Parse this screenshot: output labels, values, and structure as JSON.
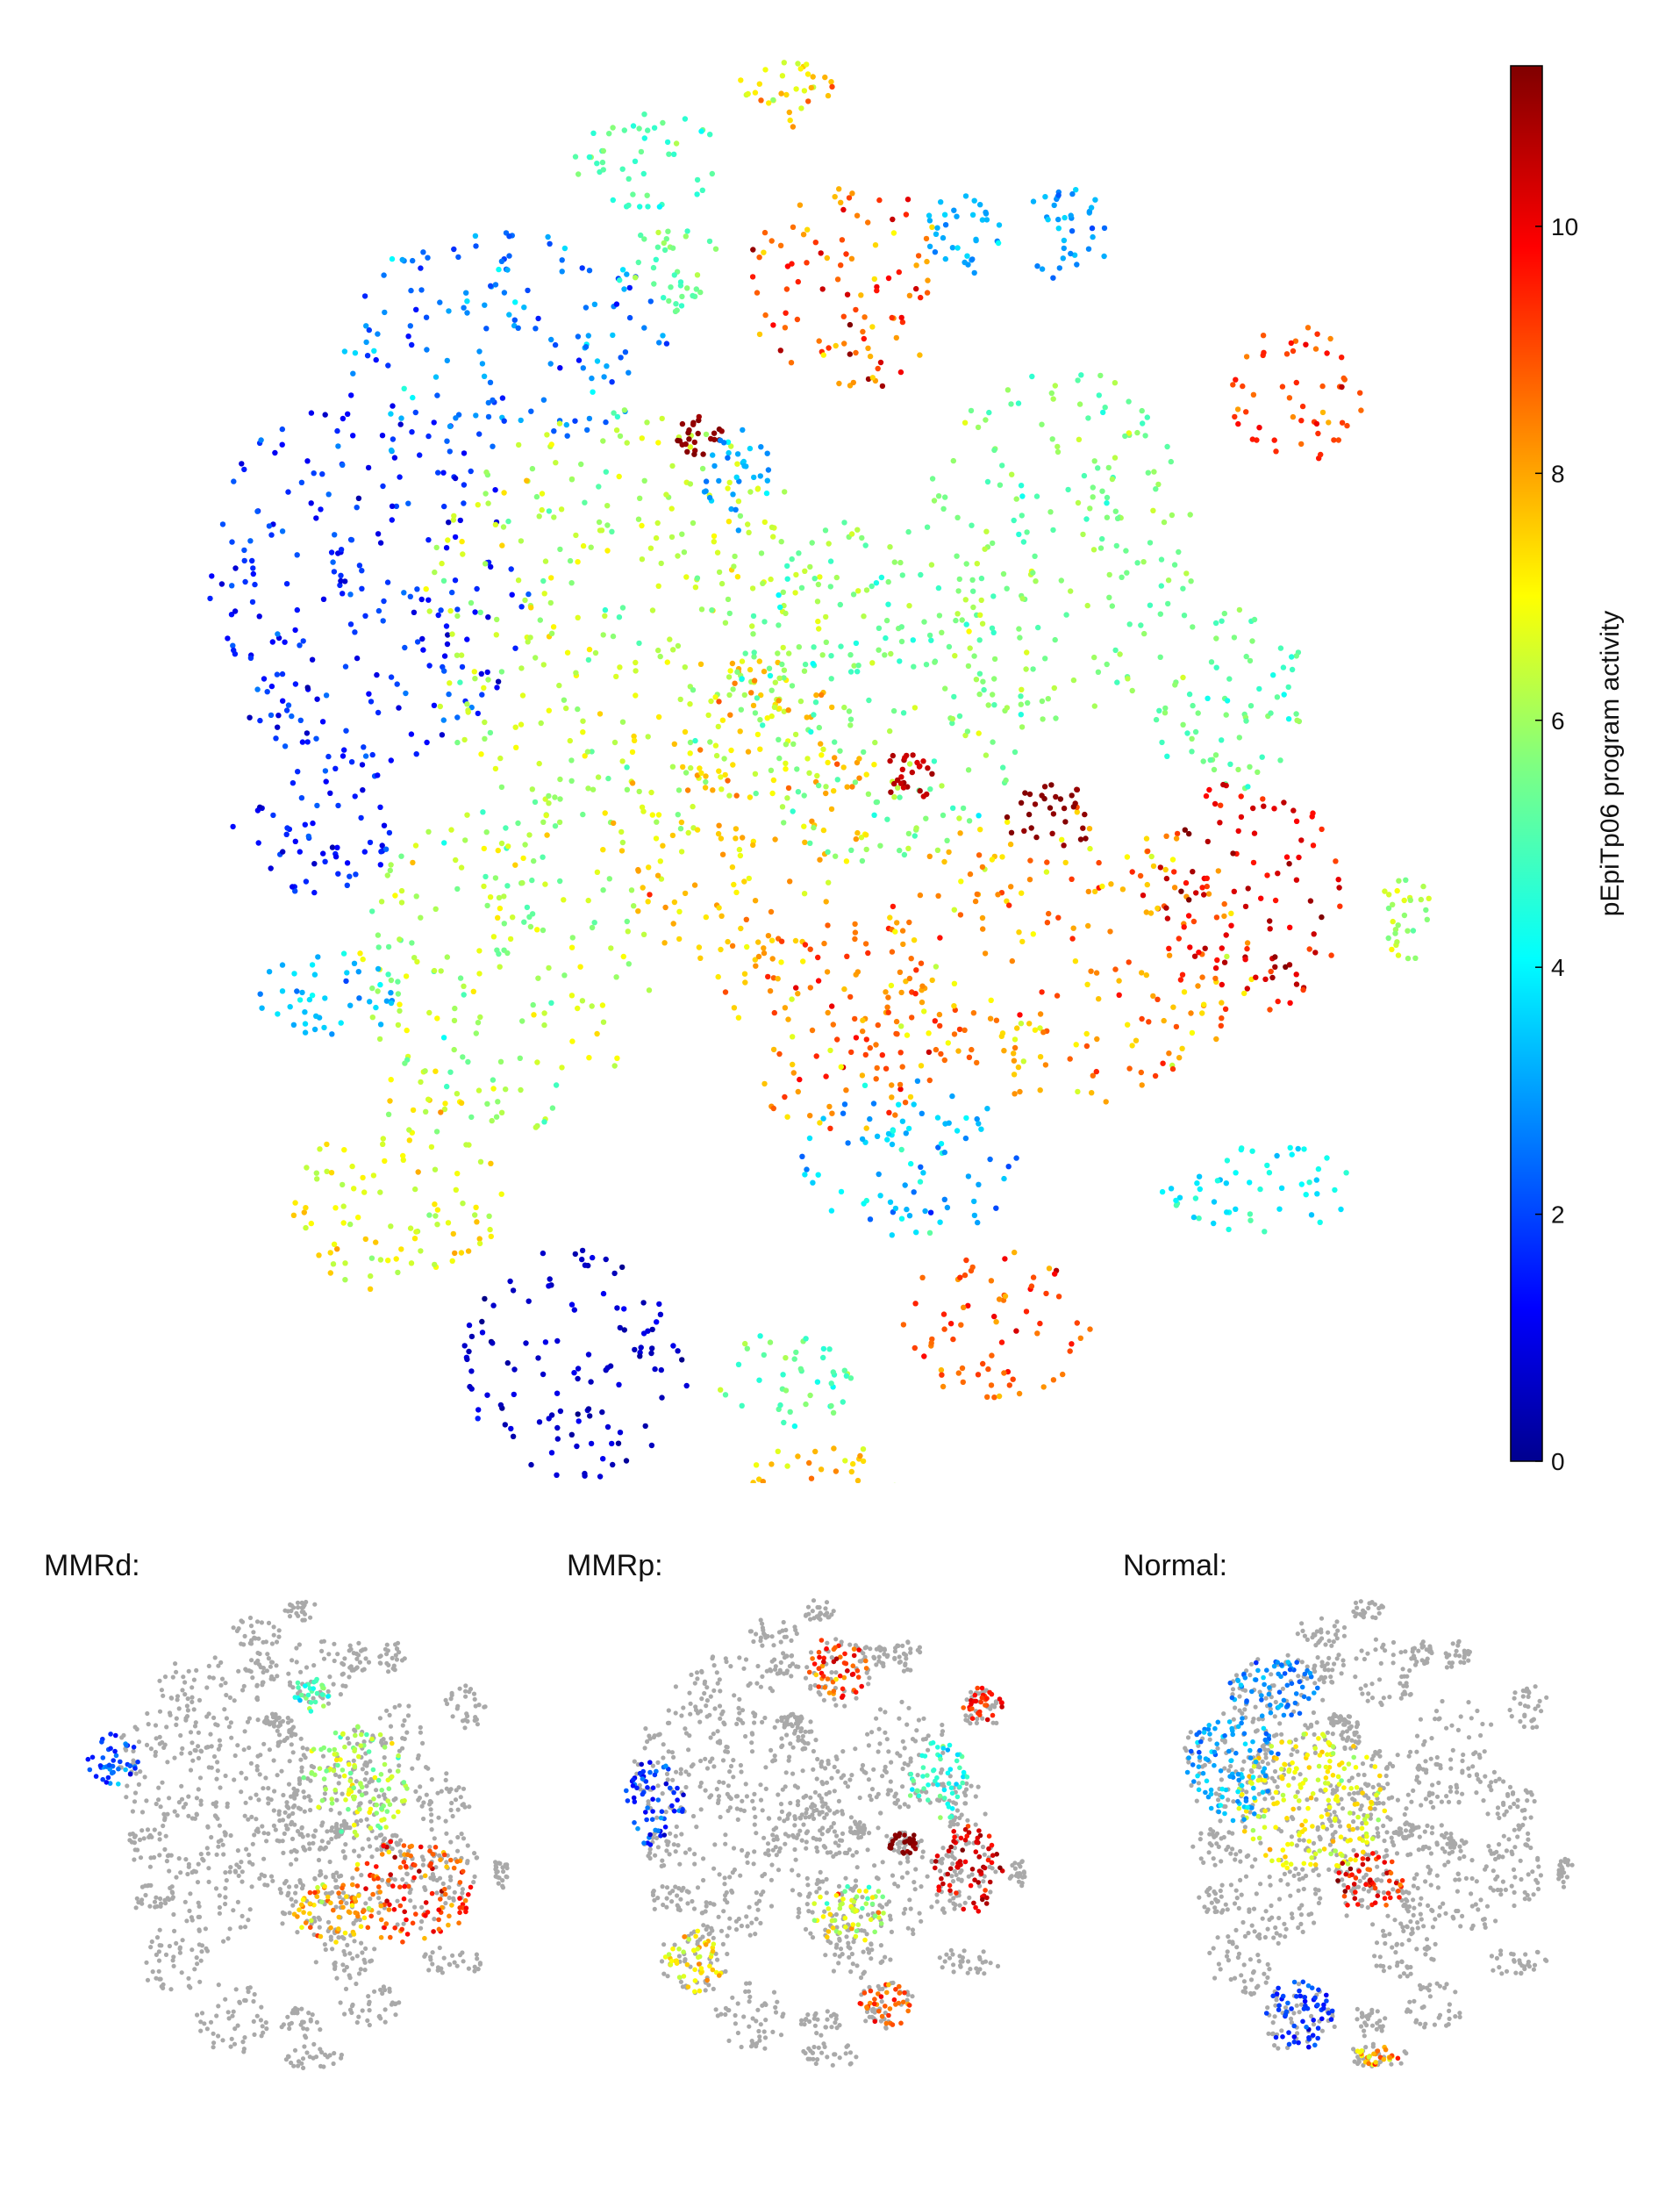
{
  "chart_data": [
    {
      "type": "scatter",
      "title": "",
      "colorbar": {
        "label": "pEpiTp06 program activity",
        "range": [
          0,
          11.3
        ],
        "ticks": [
          0,
          2,
          4,
          6,
          8,
          10
        ],
        "tick_labels": [
          "0",
          "2",
          "4",
          "6",
          "8",
          "10"
        ],
        "colormap": "jet"
      },
      "axes_visible": false,
      "grid": false,
      "clusters": [
        {
          "cx": -0.56,
          "cy": 0.26,
          "rx": 0.24,
          "ry": 0.28,
          "value": 1.8,
          "spread": 1.2
        },
        {
          "cx": -0.36,
          "cy": 0.62,
          "rx": 0.24,
          "ry": 0.16,
          "value": 2.8,
          "spread": 1.4
        },
        {
          "cx": -0.18,
          "cy": 0.2,
          "rx": 0.3,
          "ry": 0.32,
          "value": 6.3,
          "spread": 1.2
        },
        {
          "cx": 0.0,
          "cy": -0.08,
          "rx": 0.2,
          "ry": 0.24,
          "value": 7.6,
          "spread": 1.3
        },
        {
          "cx": 0.13,
          "cy": -0.38,
          "rx": 0.18,
          "ry": 0.16,
          "value": 8.6,
          "spread": 1.6
        },
        {
          "cx": -0.36,
          "cy": -0.3,
          "rx": 0.22,
          "ry": 0.24,
          "value": 6.2,
          "spread": 1.4
        },
        {
          "cx": -0.64,
          "cy": -0.1,
          "rx": 0.12,
          "ry": 0.09,
          "value": 1.6,
          "spread": 1.0
        },
        {
          "cx": -0.62,
          "cy": -0.34,
          "rx": 0.1,
          "ry": 0.07,
          "value": 3.6,
          "spread": 1.0
        },
        {
          "cx": -0.52,
          "cy": -0.62,
          "rx": 0.16,
          "ry": 0.16,
          "value": 6.8,
          "spread": 1.4
        },
        {
          "cx": -0.26,
          "cy": -0.88,
          "rx": 0.17,
          "ry": 0.17,
          "value": 0.8,
          "spread": 0.7
        },
        {
          "cx": 0.14,
          "cy": 0.7,
          "rx": 0.15,
          "ry": 0.16,
          "value": 9.0,
          "spread": 2.0
        },
        {
          "cx": 0.06,
          "cy": 0.98,
          "rx": 0.08,
          "ry": 0.05,
          "value": 7.4,
          "spread": 1.4
        },
        {
          "cx": -0.15,
          "cy": 0.88,
          "rx": 0.12,
          "ry": 0.07,
          "value": 5.0,
          "spread": 0.9
        },
        {
          "cx": -0.12,
          "cy": 0.72,
          "rx": 0.08,
          "ry": 0.07,
          "value": 5.3,
          "spread": 0.9
        },
        {
          "cx": 0.31,
          "cy": 0.77,
          "rx": 0.06,
          "ry": 0.07,
          "value": 3.4,
          "spread": 0.8
        },
        {
          "cx": 0.19,
          "cy": 0.1,
          "rx": 0.22,
          "ry": 0.26,
          "value": 5.6,
          "spread": 1.1
        },
        {
          "cx": 0.45,
          "cy": 0.32,
          "rx": 0.2,
          "ry": 0.26,
          "value": 5.7,
          "spread": 1.0
        },
        {
          "cx": 0.7,
          "cy": 0.1,
          "rx": 0.12,
          "ry": 0.14,
          "value": 5.4,
          "spread": 1.0
        },
        {
          "cx": 0.8,
          "cy": 0.54,
          "rx": 0.1,
          "ry": 0.1,
          "value": 9.1,
          "spread": 1.2
        },
        {
          "cx": 0.46,
          "cy": -0.28,
          "rx": 0.28,
          "ry": 0.22,
          "value": 8.2,
          "spread": 1.8
        },
        {
          "cx": 0.73,
          "cy": -0.2,
          "rx": 0.14,
          "ry": 0.18,
          "value": 10.3,
          "spread": 1.3
        },
        {
          "cx": 0.23,
          "cy": -0.58,
          "rx": 0.16,
          "ry": 0.12,
          "value": 3.6,
          "spread": 1.4
        },
        {
          "cx": 0.74,
          "cy": -0.62,
          "rx": 0.14,
          "ry": 0.07,
          "value": 4.2,
          "spread": 1.0
        },
        {
          "cx": 0.36,
          "cy": -0.82,
          "rx": 0.14,
          "ry": 0.11,
          "value": 9.0,
          "spread": 1.3
        },
        {
          "cx": 0.05,
          "cy": -0.9,
          "rx": 0.1,
          "ry": 0.07,
          "value": 5.3,
          "spread": 1.0
        },
        {
          "cx": 0.1,
          "cy": -1.05,
          "rx": 0.14,
          "ry": 0.06,
          "value": 7.5,
          "spread": 2.0
        },
        {
          "cx": 0.96,
          "cy": -0.22,
          "rx": 0.04,
          "ry": 0.07,
          "value": 6.0,
          "spread": 1.0
        },
        {
          "cx": -0.08,
          "cy": 0.48,
          "rx": 0.04,
          "ry": 0.03,
          "value": 11.2,
          "spread": 0.2
        },
        {
          "cx": 0.44,
          "cy": -0.08,
          "rx": 0.07,
          "ry": 0.05,
          "value": 11.2,
          "spread": 0.2
        },
        {
          "cx": 0.23,
          "cy": -0.02,
          "rx": 0.04,
          "ry": 0.04,
          "value": 10.6,
          "spread": 0.4
        },
        {
          "cx": -0.02,
          "cy": 0.42,
          "rx": 0.05,
          "ry": 0.08,
          "value": 3.2,
          "spread": 1.0
        },
        {
          "cx": 0.46,
          "cy": 0.77,
          "rx": 0.07,
          "ry": 0.07,
          "value": 3.0,
          "spread": 0.8
        }
      ]
    },
    {
      "type": "scatter",
      "title": "MMRd:",
      "background_color": "#a9a9a9",
      "highlight": [
        {
          "cx": 0.55,
          "cy": -0.3,
          "rx": 0.28,
          "ry": 0.24,
          "value": 9.2,
          "spread": 1.6
        },
        {
          "cx": 0.3,
          "cy": 0.2,
          "rx": 0.24,
          "ry": 0.26,
          "value": 6.2,
          "spread": 1.2
        },
        {
          "cx": 0.2,
          "cy": -0.4,
          "rx": 0.18,
          "ry": 0.14,
          "value": 7.8,
          "spread": 1.6
        },
        {
          "cx": -0.8,
          "cy": 0.3,
          "rx": 0.12,
          "ry": 0.12,
          "value": 2.2,
          "spread": 1.6
        },
        {
          "cx": 0.1,
          "cy": 0.6,
          "rx": 0.08,
          "ry": 0.08,
          "value": 5.0,
          "spread": 1.2
        }
      ]
    },
    {
      "type": "scatter",
      "title": "MMRp:",
      "background_color": "#a9a9a9",
      "highlight": [
        {
          "cx": 0.74,
          "cy": -0.2,
          "rx": 0.16,
          "ry": 0.2,
          "value": 10.4,
          "spread": 1.0
        },
        {
          "cx": 0.14,
          "cy": 0.72,
          "rx": 0.14,
          "ry": 0.15,
          "value": 9.2,
          "spread": 1.6
        },
        {
          "cx": 0.36,
          "cy": -0.82,
          "rx": 0.12,
          "ry": 0.1,
          "value": 9.0,
          "spread": 1.2
        },
        {
          "cx": -0.52,
          "cy": -0.62,
          "rx": 0.14,
          "ry": 0.14,
          "value": 7.2,
          "spread": 1.4
        },
        {
          "cx": -0.7,
          "cy": 0.1,
          "rx": 0.14,
          "ry": 0.2,
          "value": 2.0,
          "spread": 1.2
        },
        {
          "cx": 0.2,
          "cy": -0.4,
          "rx": 0.18,
          "ry": 0.14,
          "value": 6.5,
          "spread": 2.0
        },
        {
          "cx": 0.44,
          "cy": -0.08,
          "rx": 0.07,
          "ry": 0.05,
          "value": 11.2,
          "spread": 0.2
        },
        {
          "cx": 0.8,
          "cy": 0.54,
          "rx": 0.09,
          "ry": 0.09,
          "value": 9.6,
          "spread": 1.0
        },
        {
          "cx": 0.6,
          "cy": 0.2,
          "rx": 0.14,
          "ry": 0.18,
          "value": 4.6,
          "spread": 1.2
        }
      ]
    },
    {
      "type": "scatter",
      "title": "Normal:",
      "background_color": "#a9a9a9",
      "highlight": [
        {
          "cx": -0.2,
          "cy": 0.1,
          "rx": 0.34,
          "ry": 0.32,
          "value": 7.0,
          "spread": 1.0
        },
        {
          "cx": -0.56,
          "cy": 0.26,
          "rx": 0.22,
          "ry": 0.24,
          "value": 3.2,
          "spread": 1.0
        },
        {
          "cx": -0.36,
          "cy": 0.62,
          "rx": 0.22,
          "ry": 0.14,
          "value": 3.0,
          "spread": 1.0
        },
        {
          "cx": 0.06,
          "cy": -0.26,
          "rx": 0.16,
          "ry": 0.14,
          "value": 9.8,
          "spread": 1.2
        },
        {
          "cx": -0.26,
          "cy": -0.86,
          "rx": 0.16,
          "ry": 0.16,
          "value": 2.0,
          "spread": 1.0
        },
        {
          "cx": 0.1,
          "cy": -1.05,
          "rx": 0.1,
          "ry": 0.05,
          "value": 8.0,
          "spread": 1.6
        }
      ]
    }
  ]
}
